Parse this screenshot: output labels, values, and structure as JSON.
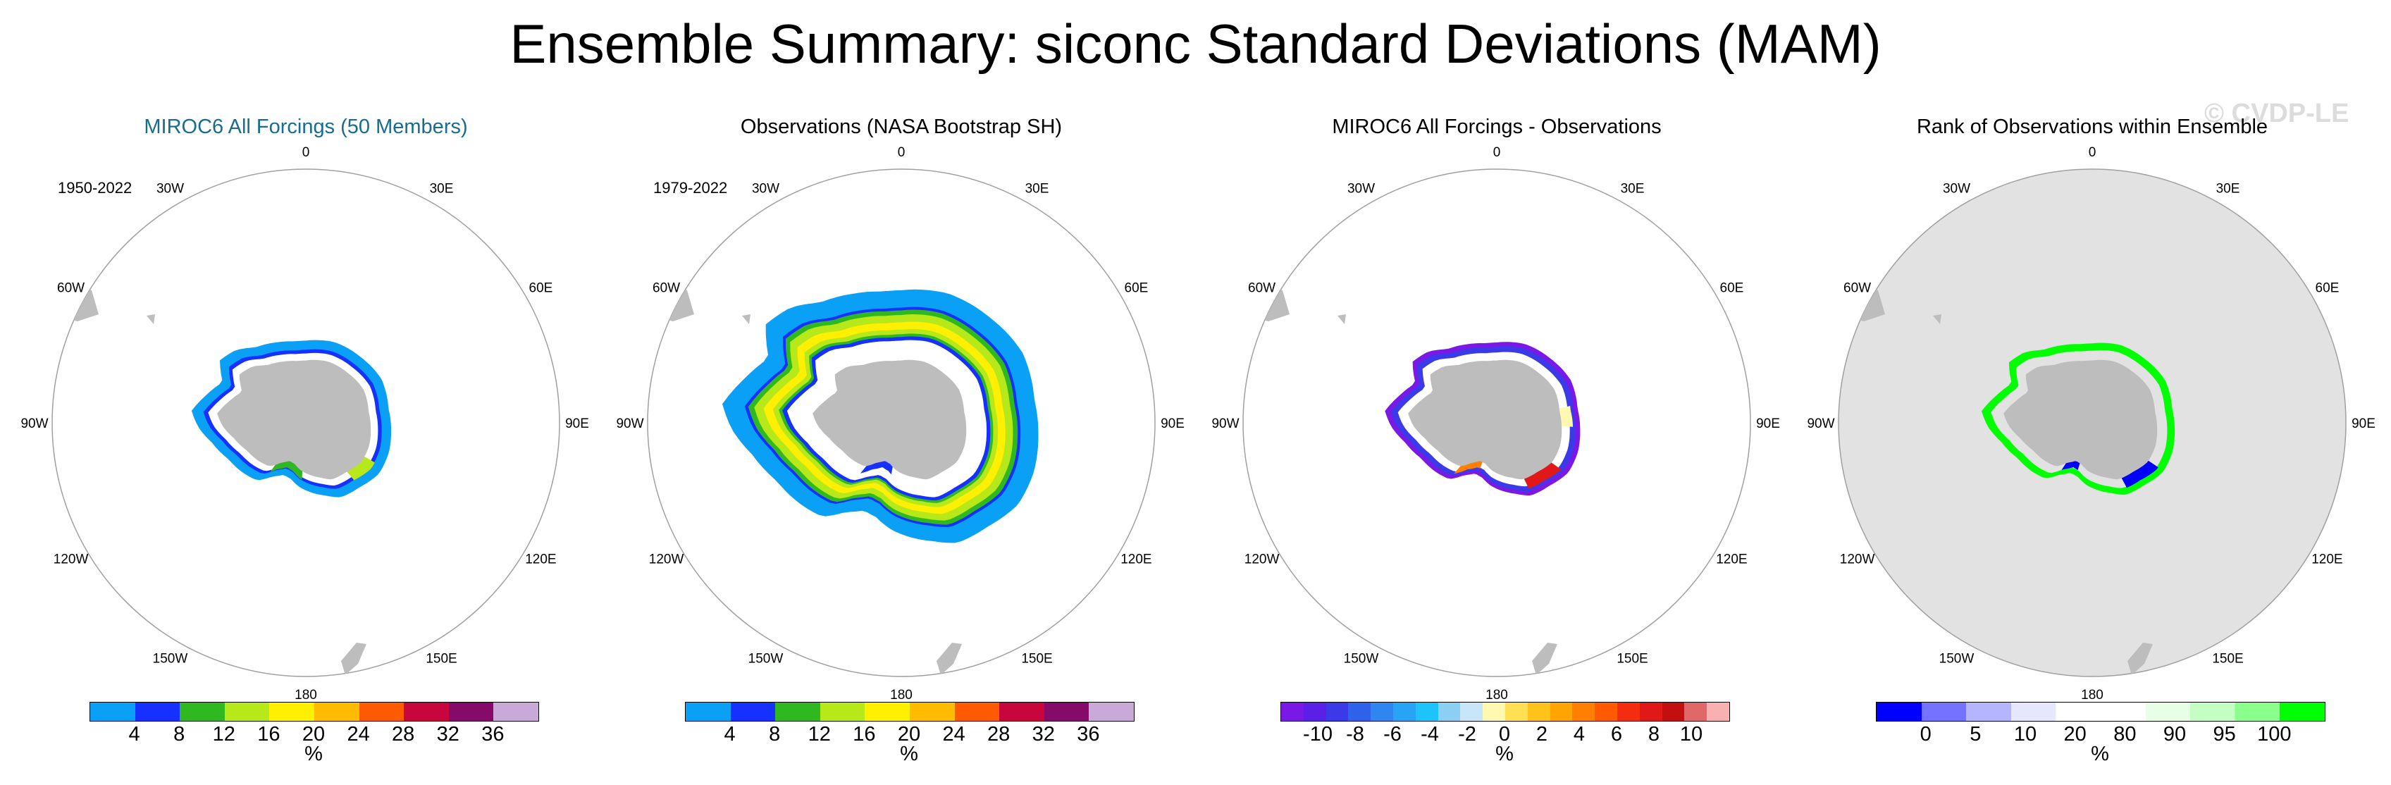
{
  "title": "Ensemble Summary: siconc Standard Deviations (MAM)",
  "watermark": "© CVDP-LE",
  "colors": {
    "title_blue": "#176d8f",
    "land": "#bdbdbd",
    "ocean": "#ffffff",
    "ocean_rank": "#e2e2e2",
    "circle": "#a0a0a0"
  },
  "lon_labels": [
    "0",
    "30E",
    "60E",
    "90E",
    "120E",
    "150E",
    "180",
    "150W",
    "120W",
    "90W",
    "60W",
    "30W"
  ],
  "panels": [
    {
      "title": "MIROC6 All Forcings (50 Members)",
      "years": "1950-2022",
      "title_color": "#176d8f",
      "ocean": "#ffffff",
      "colorbar": {
        "colors": [
          "#0aa0f5",
          "#1530ff",
          "#30b820",
          "#b6e81a",
          "#ffef00",
          "#ffbb00",
          "#ff5a00",
          "#c8053c",
          "#850a6a",
          "#c8a9d8"
        ],
        "ticks": [
          "4",
          "8",
          "12",
          "16",
          "20",
          "24",
          "28",
          "32",
          "36"
        ],
        "units": "%"
      },
      "rings": [
        {
          "color": "#0aa0f5",
          "r": 1.0
        },
        {
          "color": "#1530ff",
          "r": 0.9
        },
        {
          "color": "#ffffff",
          "r": 0.86
        }
      ],
      "accents": [
        {
          "color": "#b6e81a",
          "angle": 130,
          "spread": 10
        },
        {
          "color": "#30b820",
          "angle": 200,
          "spread": 16
        }
      ]
    },
    {
      "title": "Observations (NASA Bootstrap SH)",
      "years": "1979-2022",
      "title_color": "#000000",
      "ocean": "#ffffff",
      "colorbar": {
        "colors": [
          "#0aa0f5",
          "#1530ff",
          "#30b820",
          "#b6e81a",
          "#ffef00",
          "#ffbb00",
          "#ff5a00",
          "#c8053c",
          "#850a6a",
          "#c8a9d8"
        ],
        "ticks": [
          "4",
          "8",
          "12",
          "16",
          "20",
          "24",
          "28",
          "32",
          "36"
        ],
        "units": "%"
      },
      "rings": [
        {
          "color": "#0aa0f5",
          "r": 1.55
        },
        {
          "color": "#1530ff",
          "r": 1.36
        },
        {
          "color": "#30b820",
          "r": 1.33
        },
        {
          "color": "#b6e81a",
          "r": 1.28
        },
        {
          "color": "#ffef00",
          "r": 1.2
        },
        {
          "color": "#b6e81a",
          "r": 1.12
        },
        {
          "color": "#30b820",
          "r": 1.07
        },
        {
          "color": "#1530ff",
          "r": 1.04
        },
        {
          "color": "#ffffff",
          "r": 1.0
        }
      ],
      "accents": [
        {
          "color": "#1530ff",
          "angle": 205,
          "spread": 14
        }
      ]
    },
    {
      "title": "MIROC6 All Forcings - Observations",
      "years": "",
      "title_color": "#000000",
      "ocean": "#ffffff",
      "colorbar": {
        "colors": [
          "#7a19e6",
          "#5a20e8",
          "#3a3ae8",
          "#2e62ea",
          "#2f86f0",
          "#27a4f6",
          "#1cc4fb",
          "#8bd0f4",
          "#c7e6f8",
          "#fff8b0",
          "#ffe055",
          "#ffc21a",
          "#ffa400",
          "#ff8000",
          "#ff5a00",
          "#f52d10",
          "#e01818",
          "#c40f10",
          "#e06868",
          "#f8b0b0"
        ],
        "ticks": [
          "-10",
          "-8",
          "-6",
          "-4",
          "-2",
          "0",
          "2",
          "4",
          "6",
          "8",
          "10"
        ],
        "units": "%"
      },
      "rings": [
        {
          "color": "#7a19e6",
          "r": 0.98
        },
        {
          "color": "#3a3ae8",
          "r": 0.93
        },
        {
          "color": "#ffffff",
          "r": 0.87
        }
      ],
      "accents": [
        {
          "color": "#e01818",
          "angle": 140,
          "spread": 14
        },
        {
          "color": "#ff8000",
          "angle": 210,
          "spread": 10
        },
        {
          "color": "#fff8b0",
          "angle": 85,
          "spread": 8
        }
      ]
    },
    {
      "title": "Rank of Observations within Ensemble",
      "years": "",
      "title_color": "#000000",
      "ocean": "#e2e2e2",
      "colorbar": {
        "colors": [
          "#0000ff",
          "#7373ff",
          "#b4b4ff",
          "#e6e6ff",
          "#ffffff",
          "#ffffff",
          "#e6ffe6",
          "#c3ffc3",
          "#8bff8b",
          "#00ff00"
        ],
        "ticks": [
          "0",
          "5",
          "10",
          "20",
          "80",
          "90",
          "95",
          "100"
        ],
        "units": "%"
      },
      "rings": [
        {
          "color": "#00ff00",
          "r": 0.97
        },
        {
          "color": "#e2e2e2",
          "r": 0.89
        }
      ],
      "accents": [
        {
          "color": "#0000ff",
          "angle": 138,
          "spread": 14
        },
        {
          "color": "#0000ff",
          "angle": 205,
          "spread": 8
        }
      ]
    }
  ],
  "chart_data": [
    {
      "type": "heatmap",
      "title": "MIROC6 All Forcings (50 Members)",
      "period": "1950-2022",
      "variable": "siconc standard deviation",
      "season": "MAM",
      "projection": "south polar stereographic",
      "colorbar_levels": [
        4,
        8,
        12,
        16,
        20,
        24,
        28,
        32,
        36
      ],
      "units": "%"
    },
    {
      "type": "heatmap",
      "title": "Observations (NASA Bootstrap SH)",
      "period": "1979-2022",
      "variable": "siconc standard deviation",
      "season": "MAM",
      "projection": "south polar stereographic",
      "colorbar_levels": [
        4,
        8,
        12,
        16,
        20,
        24,
        28,
        32,
        36
      ],
      "units": "%"
    },
    {
      "type": "heatmap",
      "title": "MIROC6 All Forcings - Observations",
      "variable": "siconc standard deviation difference",
      "season": "MAM",
      "projection": "south polar stereographic",
      "colorbar_levels": [
        -10,
        -8,
        -6,
        -4,
        -2,
        0,
        2,
        4,
        6,
        8,
        10
      ],
      "units": "%"
    },
    {
      "type": "heatmap",
      "title": "Rank of Observations within Ensemble",
      "variable": "rank",
      "season": "MAM",
      "projection": "south polar stereographic",
      "colorbar_levels": [
        0,
        5,
        10,
        20,
        80,
        90,
        95,
        100
      ],
      "units": "%"
    }
  ]
}
